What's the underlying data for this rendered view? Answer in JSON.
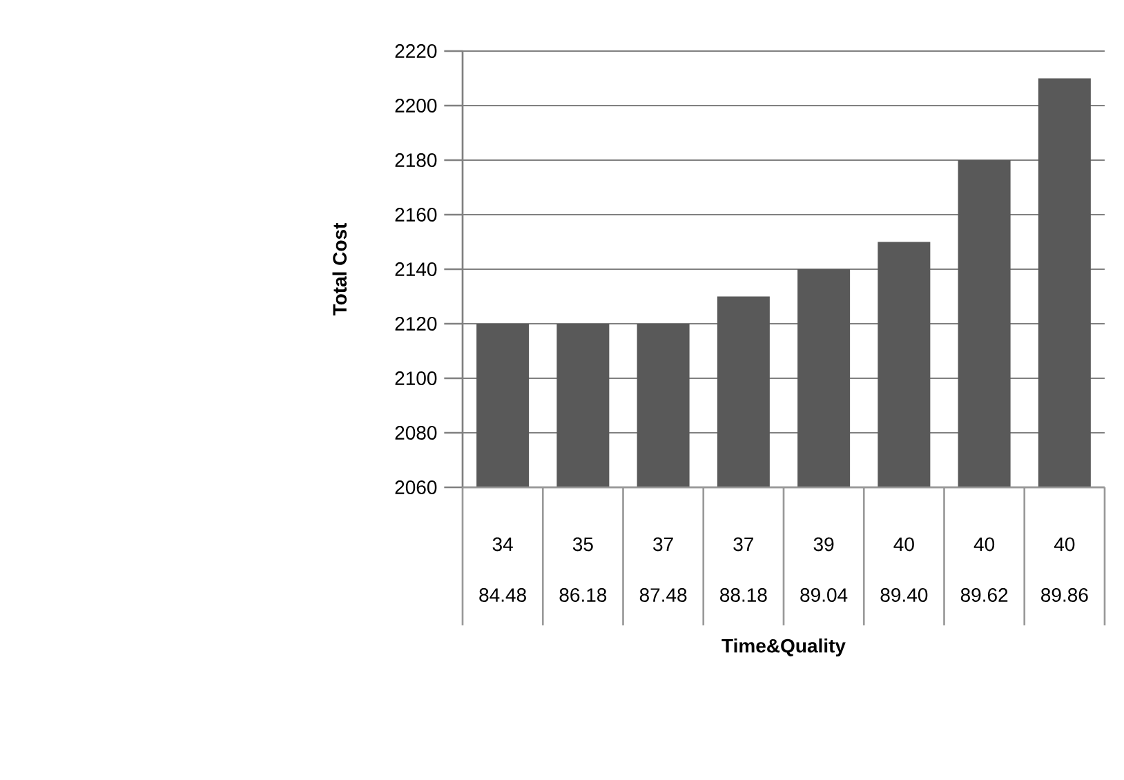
{
  "chart_data": {
    "type": "bar",
    "xlabel": "Time&Quality",
    "ylabel": "Total Cost",
    "categories": [
      "34",
      "35",
      "37",
      "37",
      "39",
      "40",
      "40",
      "40"
    ],
    "annotations": [
      "84.48",
      "86.18",
      "87.48",
      "88.18",
      "89.04",
      "89.40",
      "89.62",
      "89.86"
    ],
    "values": [
      2120,
      2120,
      2120,
      2130,
      2140,
      2150,
      2180,
      2210
    ],
    "color": "#595959",
    "ylim": [
      2060,
      2220
    ],
    "yticks": [
      2060,
      2080,
      2100,
      2120,
      2140,
      2160,
      2180,
      2200,
      2220
    ],
    "grid": "y"
  }
}
